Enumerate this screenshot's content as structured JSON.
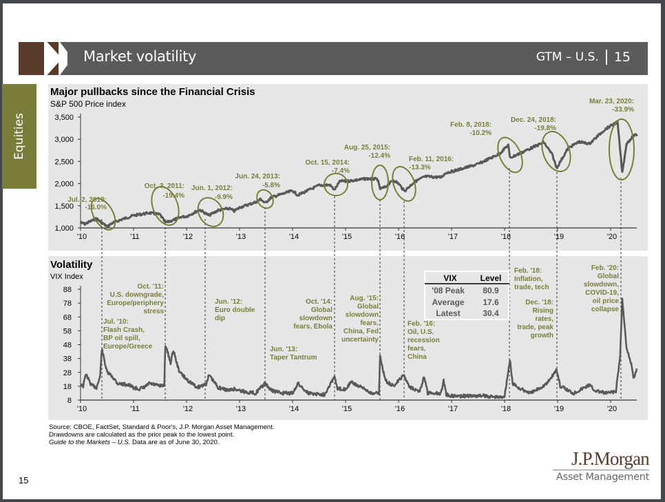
{
  "header": {
    "title": "Market volatility",
    "section_code": "GTM – U.S.",
    "page_number": "15"
  },
  "side_tab": {
    "label": "Equities"
  },
  "colors": {
    "header_brown": "#5a3a2b",
    "header_gray": "#5b5b5b",
    "side_tab_olive": "#7a7d3a",
    "annotation_olive": "#7a7d3a",
    "series_gray": "#595959",
    "panel_bg": "#e6e6e6"
  },
  "chart_data": [
    {
      "type": "line",
      "id": "sp500",
      "title": "Major pullbacks since the Financial Crisis",
      "subtitle": "S&P 500 Price index",
      "xlabel": "",
      "ylabel": "",
      "x_ticks": [
        "'10",
        "'11",
        "'12",
        "'13",
        "'14",
        "'15",
        "'16",
        "'17",
        "'18",
        "'19",
        "'20"
      ],
      "y_ticks": [
        "1,000",
        "1,500",
        "2,000",
        "2,500",
        "3,000",
        "3,500"
      ],
      "ylim": [
        1000,
        3500
      ],
      "xlim": [
        2010.0,
        2020.5
      ],
      "grid": false,
      "series": [
        {
          "name": "S&P 500",
          "x": [
            2010.0,
            2010.08,
            2010.3,
            2010.5,
            2010.6,
            2010.75,
            2011.0,
            2011.3,
            2011.5,
            2011.6,
            2011.76,
            2011.9,
            2012.0,
            2012.25,
            2012.42,
            2012.6,
            2012.8,
            2012.9,
            2013.0,
            2013.3,
            2013.4,
            2013.48,
            2013.6,
            2013.9,
            2014.0,
            2014.1,
            2014.5,
            2014.7,
            2014.79,
            2014.9,
            2015.0,
            2015.4,
            2015.6,
            2015.65,
            2015.75,
            2015.9,
            2016.0,
            2016.11,
            2016.3,
            2016.5,
            2016.8,
            2016.9,
            2017.0,
            2017.5,
            2017.9,
            2018.07,
            2018.1,
            2018.25,
            2018.5,
            2018.74,
            2018.9,
            2018.98,
            2019.2,
            2019.4,
            2019.6,
            2019.9,
            2020.13,
            2020.22,
            2020.3,
            2020.45,
            2020.5
          ],
          "y": [
            1120,
            1090,
            1210,
            1030,
            1110,
            1180,
            1280,
            1340,
            1300,
            1120,
            1180,
            1250,
            1260,
            1410,
            1280,
            1400,
            1440,
            1380,
            1460,
            1580,
            1650,
            1560,
            1690,
            1800,
            1840,
            1740,
            1960,
            1970,
            1860,
            2060,
            2050,
            2110,
            2100,
            1880,
            1920,
            2080,
            2000,
            1830,
            2040,
            2160,
            2140,
            2250,
            2270,
            2440,
            2670,
            2870,
            2580,
            2660,
            2800,
            2930,
            2650,
            2350,
            2800,
            2940,
            2900,
            3230,
            3390,
            2240,
            2900,
            3100,
            3070
          ]
        }
      ],
      "annotations": [
        {
          "date": "Jul. 2, 2010:",
          "drawdown": "-16.0%"
        },
        {
          "date": "Oct. 3, 2011:",
          "drawdown": "-19.4%"
        },
        {
          "date": "Jun. 1, 2012:",
          "drawdown": "-9.9%"
        },
        {
          "date": "Jun. 24, 2013:",
          "drawdown": "-5.8%"
        },
        {
          "date": "Oct. 15, 2014:",
          "drawdown": "-7.4%"
        },
        {
          "date": "Aug. 25, 2015:",
          "drawdown": "-12.4%"
        },
        {
          "date": "Feb. 11, 2016:",
          "drawdown": "-13.3%"
        },
        {
          "date": "Feb. 8, 2018:",
          "drawdown": "-10.2%"
        },
        {
          "date": "Dec. 24, 2018:",
          "drawdown": "-19.8%"
        },
        {
          "date": "Mar. 23, 2020:",
          "drawdown": "-33.9%"
        }
      ]
    },
    {
      "type": "line",
      "id": "vix",
      "title": "Volatility",
      "subtitle": "VIX Index",
      "xlabel": "",
      "ylabel": "",
      "x_ticks": [
        "'10",
        "'11",
        "'12",
        "'13",
        "'14",
        "'15",
        "'16",
        "'17",
        "'18",
        "'19",
        "'20"
      ],
      "y_ticks": [
        "8",
        "18",
        "28",
        "38",
        "48",
        "58",
        "68",
        "78",
        "88"
      ],
      "ylim": [
        8,
        88
      ],
      "xlim": [
        2010.0,
        2020.5
      ],
      "grid": false,
      "series": [
        {
          "name": "VIX",
          "x": [
            2010.0,
            2010.05,
            2010.1,
            2010.2,
            2010.3,
            2010.37,
            2010.4,
            2010.5,
            2010.6,
            2010.7,
            2010.9,
            2011.0,
            2011.1,
            2011.2,
            2011.3,
            2011.5,
            2011.58,
            2011.6,
            2011.7,
            2011.75,
            2011.85,
            2011.9,
            2012.0,
            2012.2,
            2012.38,
            2012.42,
            2012.6,
            2012.8,
            2012.9,
            2013.0,
            2013.1,
            2013.3,
            2013.48,
            2013.6,
            2013.8,
            2014.0,
            2014.1,
            2014.3,
            2014.6,
            2014.79,
            2014.85,
            2015.0,
            2015.1,
            2015.5,
            2015.63,
            2015.65,
            2015.75,
            2015.9,
            2016.0,
            2016.1,
            2016.2,
            2016.4,
            2016.48,
            2016.55,
            2016.8,
            2016.85,
            2016.9,
            2017.0,
            2017.3,
            2017.6,
            2017.9,
            2018.0,
            2018.1,
            2018.15,
            2018.3,
            2018.5,
            2018.8,
            2018.98,
            2019.05,
            2019.3,
            2019.6,
            2019.7,
            2019.9,
            2020.1,
            2020.18,
            2020.22,
            2020.3,
            2020.4,
            2020.43,
            2020.5
          ],
          "y": [
            20,
            18,
            27,
            19,
            17,
            25,
            45,
            28,
            25,
            20,
            19,
            17,
            16,
            17,
            20,
            18,
            19,
            48,
            35,
            44,
            30,
            27,
            23,
            17,
            20,
            26,
            17,
            15,
            16,
            15,
            14,
            13,
            20,
            15,
            13,
            13,
            20,
            13,
            12,
            25,
            16,
            16,
            21,
            13,
            13,
            40,
            22,
            18,
            22,
            26,
            18,
            14,
            25,
            13,
            13,
            22,
            12,
            11,
            11,
            11,
            10,
            11,
            37,
            20,
            16,
            13,
            20,
            30,
            18,
            13,
            19,
            15,
            13,
            14,
            40,
            82,
            45,
            33,
            24,
            30
          ]
        }
      ],
      "annotations": [
        {
          "lines": [
            "Oct. '11:",
            "U.S. downgrade,",
            "Europe/periphery",
            "stress"
          ]
        },
        {
          "lines": [
            "Jul. '10:",
            "Flash Crash,",
            "BP oil spill,",
            "Europe/Greece"
          ]
        },
        {
          "lines": [
            "Jun. '12:",
            "Euro double",
            "dip"
          ]
        },
        {
          "lines": [
            "Jun. '13:",
            "Taper Tantrum"
          ]
        },
        {
          "lines": [
            "Oct. '14:",
            "Global",
            "slowdown",
            "fears, Ebola"
          ]
        },
        {
          "lines": [
            "Aug. '15:",
            "Global",
            "slowdown",
            "fears,",
            "China, Fed",
            "uncertainty"
          ]
        },
        {
          "lines": [
            "Feb. '16:",
            "Oil, U.S.",
            "recession",
            "fears,",
            "China"
          ]
        },
        {
          "lines": [
            "Feb. '18:",
            "Inflation,",
            "trade, tech"
          ]
        },
        {
          "lines": [
            "Dec. '18:",
            "Rising",
            "rates,",
            "trade, peak",
            "growth"
          ]
        },
        {
          "lines": [
            "Feb. '20:",
            "Global",
            "slowdown,",
            "COVID-19,",
            "oil price",
            "collapse"
          ]
        }
      ],
      "table": {
        "headers": [
          "VIX",
          "Level"
        ],
        "rows": [
          [
            "'08 Peak",
            "80.9"
          ],
          [
            "Average",
            "17.6"
          ],
          [
            "Latest",
            "30.4"
          ]
        ]
      }
    }
  ],
  "footnotes": {
    "source": "Source: CBOE, FactSet, Standard & Poor's, J.P. Morgan Asset Management.",
    "drawdowns": "Drawdowns are calculated as the prior peak to the lowest point.",
    "guide_italic": "Guide to the Markets – U.S.",
    "data_as_of": " Data are as of June 30, 2020."
  },
  "page_number": "15",
  "logo": {
    "main": "J.P.Morgan",
    "sub": "Asset Management"
  }
}
